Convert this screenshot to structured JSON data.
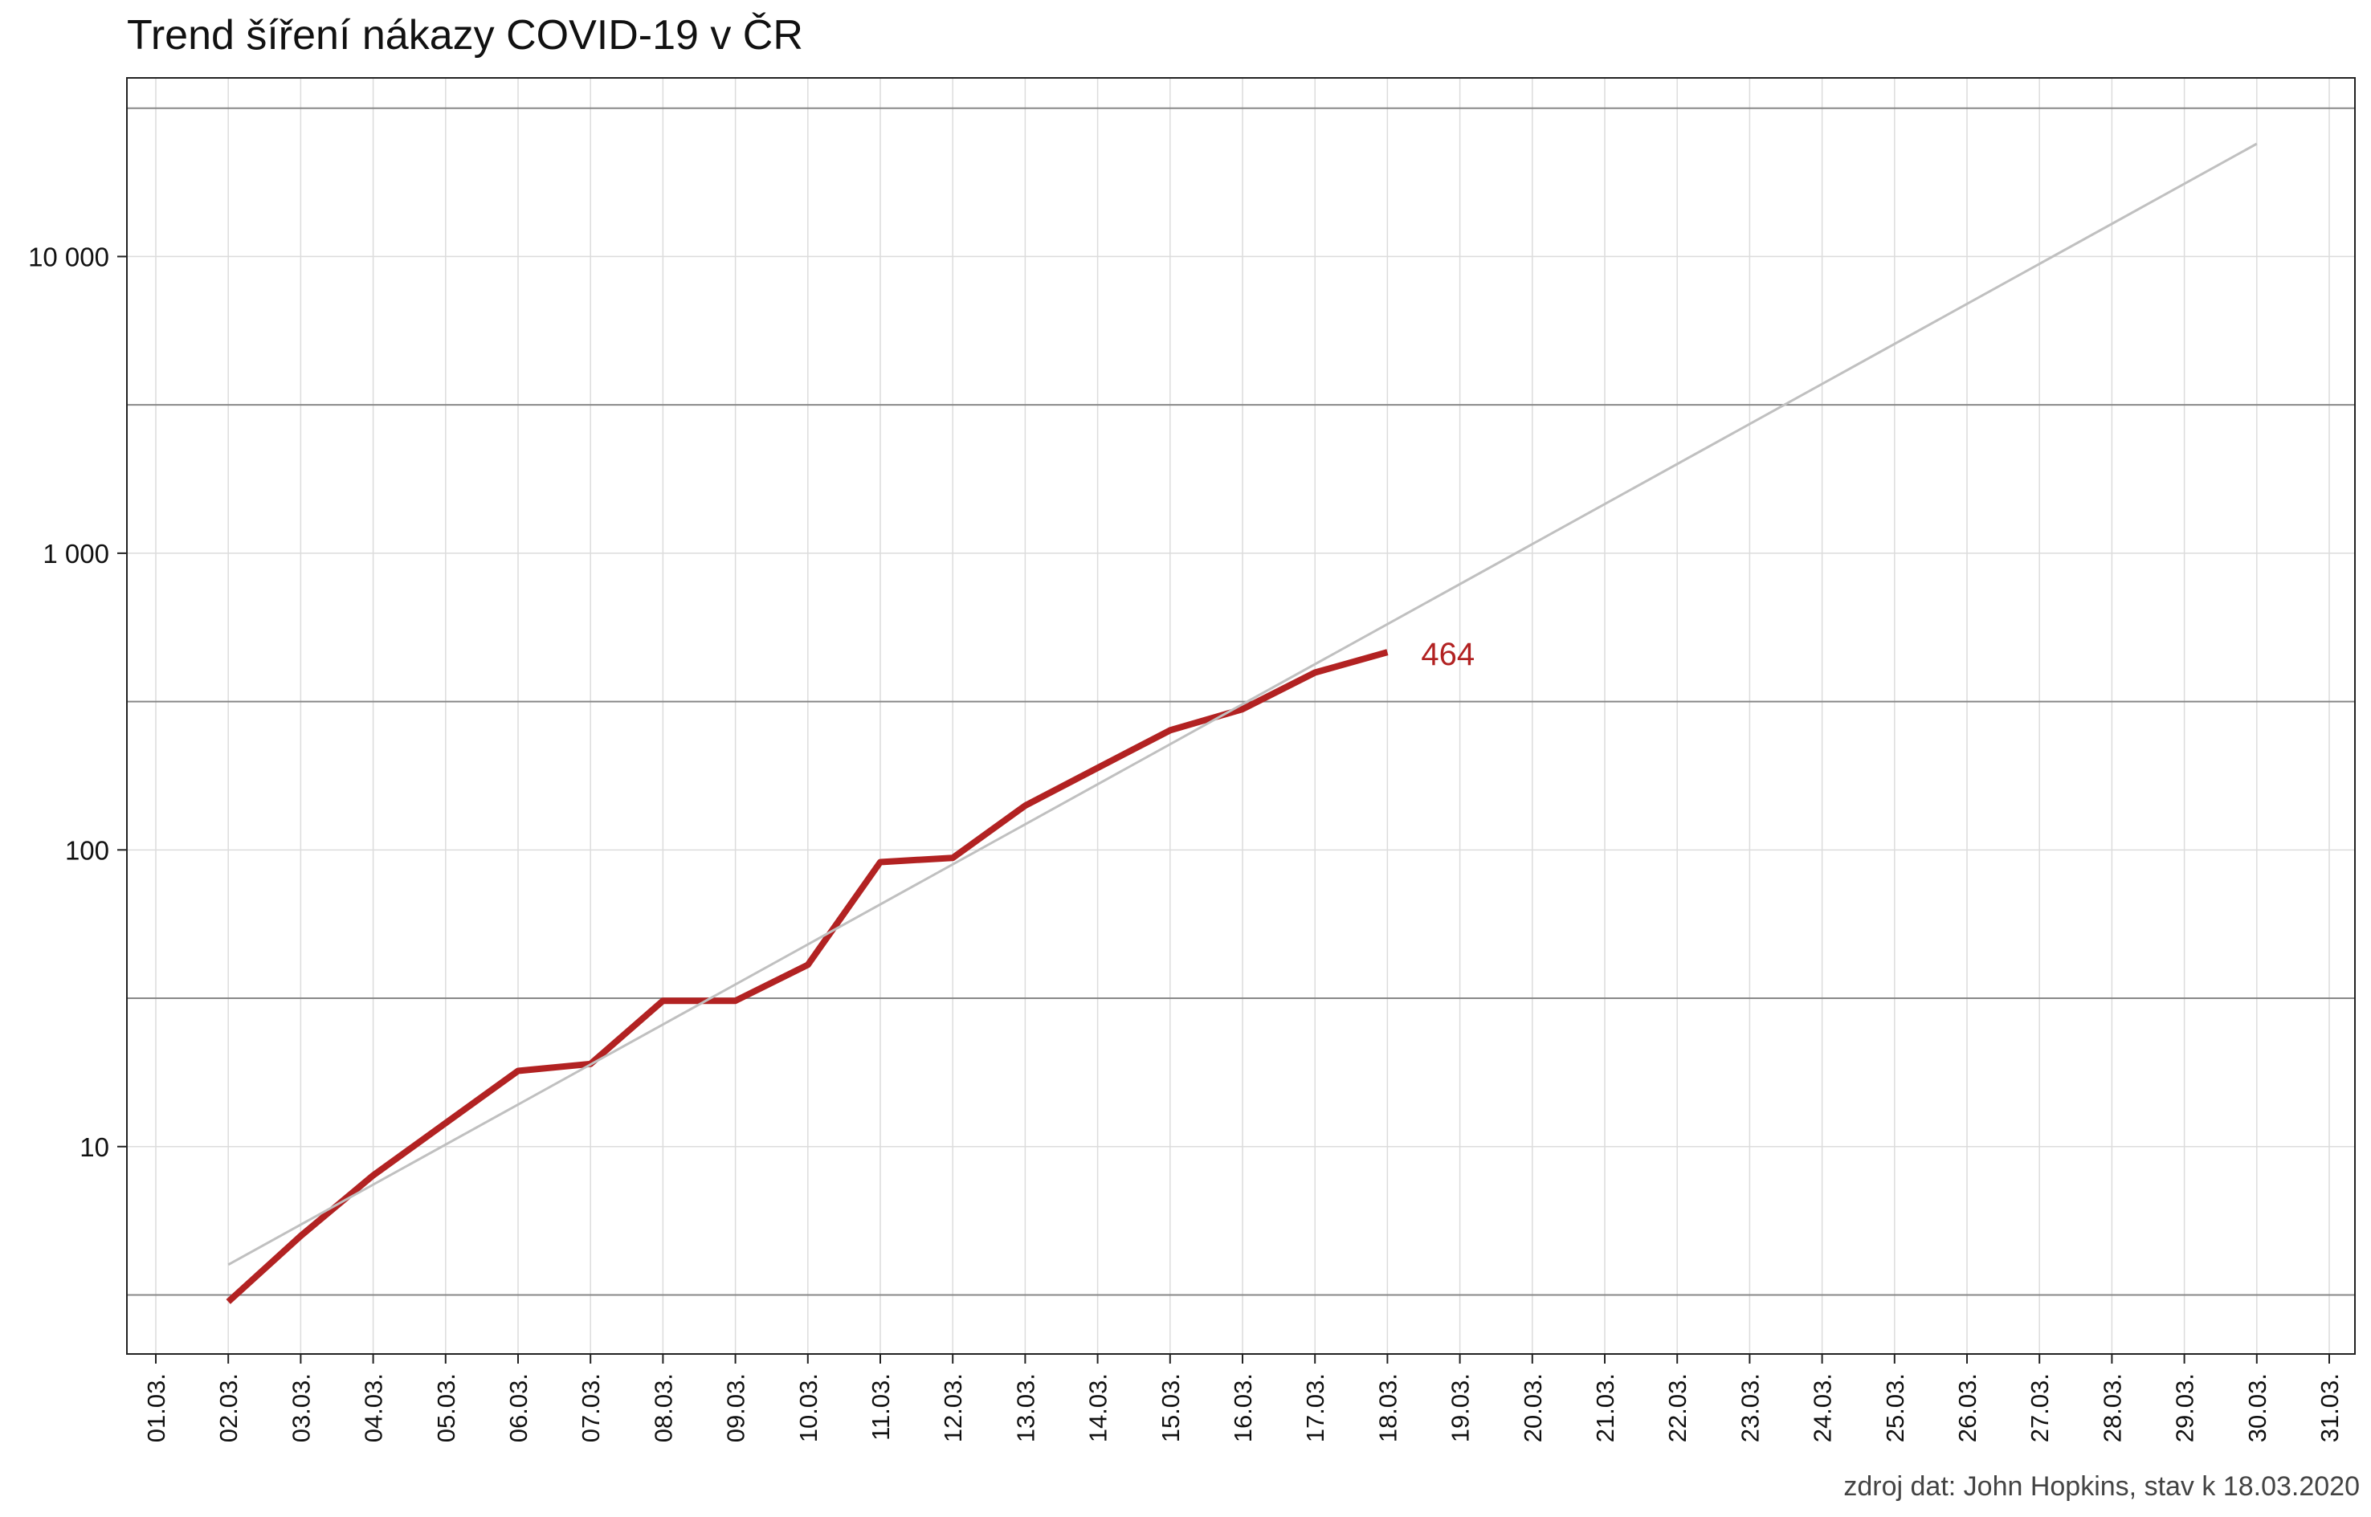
{
  "chart_data": {
    "type": "line",
    "title": "Trend šíření nákazy COVID-19 v ČR",
    "caption": "zdroj dat: John Hopkins, stav k 18.03.2020",
    "yscale": "log10",
    "ylim": [
      2,
      40000
    ],
    "yticks": [
      10,
      100,
      1000,
      10000
    ],
    "ytick_labels": [
      "10",
      "100",
      "1 000",
      "10 000"
    ],
    "y_reference_lines": [
      3.162,
      31.62,
      316.2,
      3162,
      31623
    ],
    "x": [
      "01.03.",
      "02.03.",
      "03.03.",
      "04.03.",
      "05.03.",
      "06.03.",
      "07.03.",
      "08.03.",
      "09.03.",
      "10.03.",
      "11.03.",
      "12.03.",
      "13.03.",
      "14.03.",
      "15.03.",
      "16.03.",
      "17.03.",
      "18.03.",
      "19.03.",
      "20.03.",
      "21.03.",
      "22.03.",
      "23.03.",
      "24.03.",
      "25.03.",
      "26.03.",
      "27.03.",
      "28.03.",
      "29.03.",
      "30.03.",
      "31.03."
    ],
    "grid": true,
    "series": [
      {
        "role": "cases",
        "color": "#b22222",
        "x": [
          "02.03.",
          "03.03.",
          "04.03.",
          "05.03.",
          "06.03.",
          "07.03.",
          "08.03.",
          "09.03.",
          "10.03.",
          "11.03.",
          "12.03.",
          "13.03.",
          "14.03.",
          "15.03.",
          "16.03.",
          "17.03.",
          "18.03."
        ],
        "values": [
          3,
          5,
          8,
          12,
          18,
          19,
          31,
          31,
          41,
          91,
          94,
          141,
          189,
          253,
          298,
          396,
          464
        ],
        "end_label": "464"
      },
      {
        "role": "trend",
        "color": "#c0c0c0",
        "x": [
          "02.03.",
          "30.03."
        ],
        "values": [
          4,
          24000
        ]
      }
    ]
  }
}
